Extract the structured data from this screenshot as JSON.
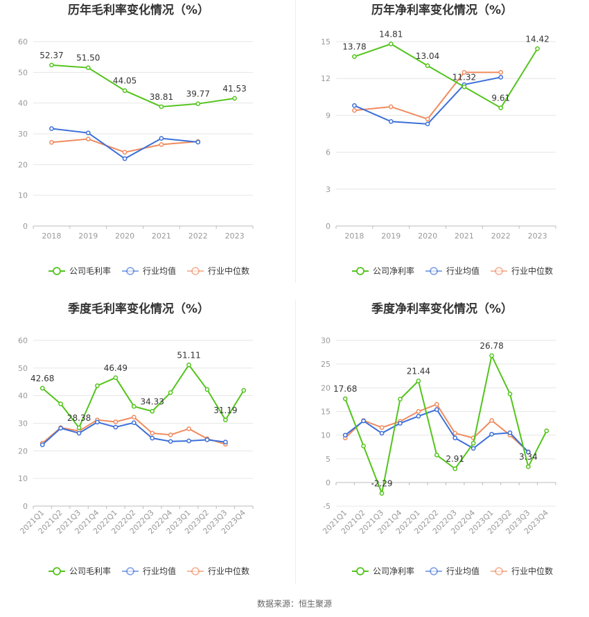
{
  "colors": {
    "company": "#52c41a",
    "industry_avg": "#3b6fd8",
    "industry_median": "#f08a5d",
    "grid": "#e6e6e6",
    "axis_text": "#999999",
    "title": "#333333"
  },
  "source_text": "数据来源：恒生聚源",
  "chart_data": [
    {
      "type": "line",
      "title": "历年毛利率变化情况（%）",
      "categories": [
        "2018",
        "2019",
        "2020",
        "2021",
        "2022",
        "2023"
      ],
      "ylim": [
        0,
        60
      ],
      "yticks": [
        0,
        10,
        20,
        30,
        40,
        50,
        60
      ],
      "grid": true,
      "legend": "bottom",
      "series": [
        {
          "name": "公司毛利率",
          "color": "#52c41a",
          "values": [
            52.37,
            51.5,
            44.05,
            38.81,
            39.77,
            41.53
          ],
          "labels": [
            "52.37",
            "51.50",
            "44.05",
            "38.81",
            "39.77",
            "41.53"
          ]
        },
        {
          "name": "行业均值",
          "color": "#3b6fd8",
          "values": [
            31.7,
            30.3,
            21.9,
            28.5,
            27.3,
            null
          ]
        },
        {
          "name": "行业中位数",
          "color": "#f08a5d",
          "values": [
            27.2,
            28.3,
            24.0,
            26.5,
            27.5,
            null
          ]
        }
      ]
    },
    {
      "type": "line",
      "title": "历年净利率变化情况（%）",
      "categories": [
        "2018",
        "2019",
        "2020",
        "2021",
        "2022",
        "2023"
      ],
      "ylim": [
        0,
        15
      ],
      "yticks": [
        0,
        3,
        6,
        9,
        12,
        15
      ],
      "grid": true,
      "legend": "bottom",
      "series": [
        {
          "name": "公司净利率",
          "color": "#52c41a",
          "values": [
            13.78,
            14.81,
            13.04,
            11.32,
            9.61,
            14.42
          ],
          "labels": [
            "13.78",
            "14.81",
            "13.04",
            "11.32",
            "9.61",
            "14.42"
          ]
        },
        {
          "name": "行业均值",
          "color": "#3b6fd8",
          "values": [
            9.8,
            8.5,
            8.3,
            11.5,
            12.1,
            null
          ]
        },
        {
          "name": "行业中位数",
          "color": "#f08a5d",
          "values": [
            9.4,
            9.7,
            8.7,
            12.5,
            12.5,
            null
          ]
        }
      ]
    },
    {
      "type": "line",
      "title": "季度毛利率变化情况（%）",
      "categories": [
        "2021Q1",
        "2021Q2",
        "2021Q3",
        "2021Q4",
        "2022Q1",
        "2022Q2",
        "2022Q3",
        "2022Q4",
        "2023Q1",
        "2023Q2",
        "2023Q3",
        "2023Q4"
      ],
      "ylim": [
        0,
        60
      ],
      "yticks": [
        0,
        10,
        20,
        30,
        40,
        50,
        60
      ],
      "grid": true,
      "legend": "bottom",
      "series": [
        {
          "name": "公司毛利率",
          "color": "#52c41a",
          "values": [
            42.68,
            37.0,
            28.38,
            43.6,
            46.49,
            36.1,
            34.33,
            41.1,
            51.11,
            42.2,
            31.19,
            41.9
          ],
          "labels": [
            "42.68",
            "",
            "28.38",
            "",
            "46.49",
            "",
            "34.33",
            "",
            "51.11",
            "",
            "31.19",
            ""
          ]
        },
        {
          "name": "行业均值",
          "color": "#3b6fd8",
          "values": [
            22.2,
            28.2,
            26.4,
            30.4,
            28.6,
            30.2,
            24.6,
            23.4,
            23.6,
            24.0,
            23.2,
            null
          ]
        },
        {
          "name": "行业中位数",
          "color": "#f08a5d",
          "values": [
            22.8,
            28.4,
            27.2,
            31.2,
            30.5,
            32.2,
            26.4,
            25.8,
            28.0,
            24.4,
            22.4,
            null
          ]
        }
      ]
    },
    {
      "type": "line",
      "title": "季度净利率变化情况（%）",
      "categories": [
        "2021Q1",
        "2021Q2",
        "2021Q3",
        "2021Q4",
        "2022Q1",
        "2022Q2",
        "2022Q3",
        "2022Q4",
        "2023Q1",
        "2023Q2",
        "2023Q3",
        "2023Q4"
      ],
      "ylim": [
        -5,
        30
      ],
      "yticks": [
        -5,
        0,
        5,
        10,
        15,
        20,
        25,
        30
      ],
      "grid": true,
      "legend": "bottom",
      "series": [
        {
          "name": "公司净利率",
          "color": "#52c41a",
          "values": [
            17.68,
            7.7,
            -2.29,
            17.6,
            21.44,
            5.8,
            2.91,
            8.3,
            26.78,
            18.7,
            3.34,
            10.9
          ],
          "labels": [
            "17.68",
            "",
            "-2.29",
            "",
            "21.44",
            "",
            "2.91",
            "",
            "26.78",
            "",
            "3.34",
            ""
          ]
        },
        {
          "name": "行业均值",
          "color": "#3b6fd8",
          "values": [
            10.0,
            13.0,
            10.4,
            12.5,
            14.0,
            15.4,
            9.4,
            7.2,
            10.2,
            10.5,
            6.4,
            null
          ]
        },
        {
          "name": "行业中位数",
          "color": "#f08a5d",
          "values": [
            9.4,
            13.1,
            11.6,
            12.9,
            15.0,
            16.5,
            10.4,
            9.4,
            13.1,
            10.0,
            6.5,
            null
          ]
        }
      ]
    }
  ]
}
